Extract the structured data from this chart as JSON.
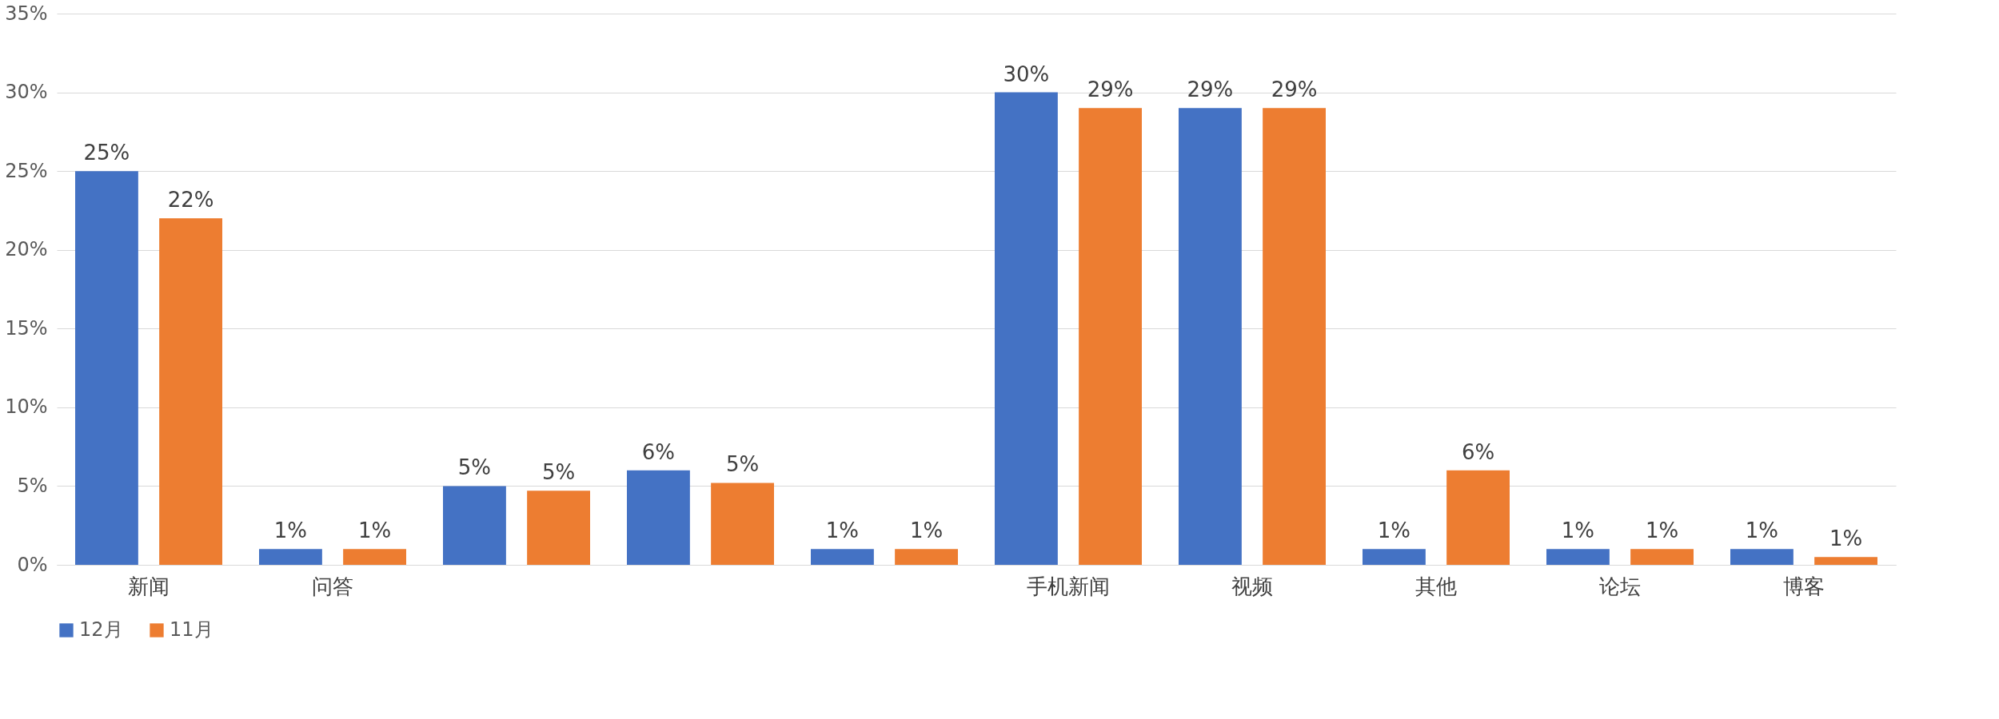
{
  "chart_data": {
    "type": "bar",
    "categories": [
      "新闻",
      "问答",
      null,
      null,
      null,
      "手机新闻",
      "视频",
      "其他",
      "论坛",
      "博客"
    ],
    "series": [
      {
        "name": "12月",
        "color": "#4472c4",
        "values": [
          25,
          1,
          5,
          6,
          1,
          30,
          29,
          1,
          1,
          1
        ],
        "value_labels": [
          "25%",
          "1%",
          "5%",
          "6%",
          "1%",
          "30%",
          "29%",
          "1%",
          "1%",
          "1%"
        ]
      },
      {
        "name": "11月",
        "color": "#ed7d31",
        "values": [
          22,
          1,
          4.7,
          5.2,
          1,
          29,
          29,
          6,
          1,
          0.5
        ],
        "value_labels": [
          "22%",
          "1%",
          "5%",
          "5%",
          "1%",
          "29%",
          "29%",
          "6%",
          "1%",
          "1%"
        ]
      }
    ],
    "ylim": [
      0,
      35
    ],
    "yticks": [
      {
        "value": 0,
        "label": "0%"
      },
      {
        "value": 5,
        "label": "5%"
      },
      {
        "value": 10,
        "label": "10%"
      },
      {
        "value": 15,
        "label": "15%"
      },
      {
        "value": 20,
        "label": "20%"
      },
      {
        "value": 25,
        "label": "25%"
      },
      {
        "value": 30,
        "label": "30%"
      },
      {
        "value": 35,
        "label": "35%"
      }
    ],
    "grid": "y",
    "legend": "bottom"
  }
}
